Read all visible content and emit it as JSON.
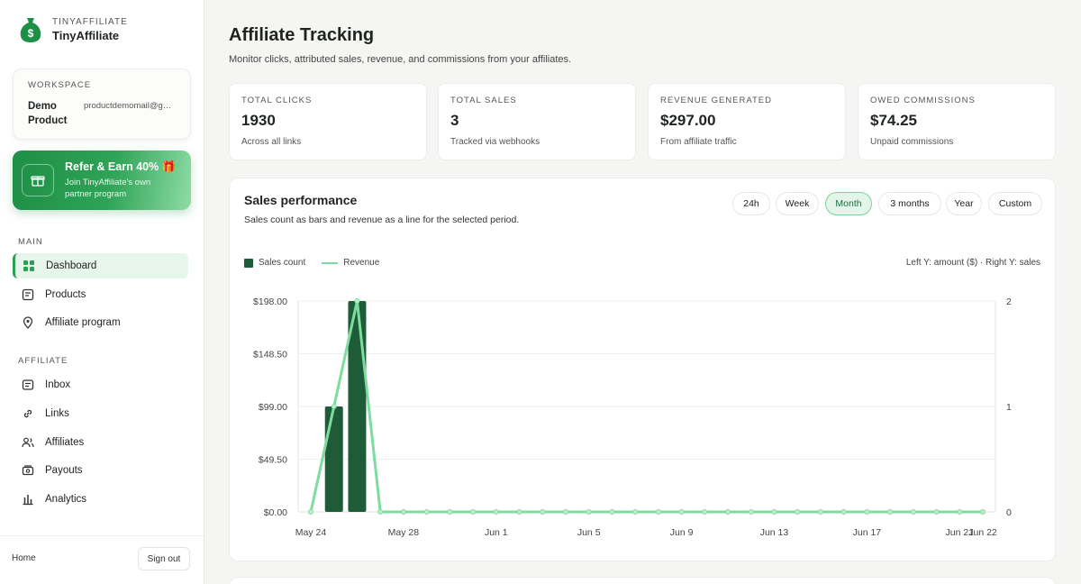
{
  "brand": {
    "small": "TINYAFFILIATE",
    "name": "TinyAffiliate"
  },
  "workspace": {
    "label": "WORKSPACE",
    "name": "Demo Product",
    "email": "productdemomail@gmail.com"
  },
  "refer": {
    "title": "Refer & Earn 40% 🎁",
    "description": "Join TinyAffiliate's own partner program"
  },
  "nav": {
    "main_label": "MAIN",
    "main_items": [
      {
        "label": "Dashboard",
        "icon": "grid-icon",
        "active": true
      },
      {
        "label": "Products",
        "icon": "document-icon"
      },
      {
        "label": "Affiliate program",
        "icon": "pin-icon"
      }
    ],
    "affiliate_label": "AFFILIATE",
    "affiliate_items": [
      {
        "label": "Inbox",
        "icon": "inbox-icon"
      },
      {
        "label": "Links",
        "icon": "link-icon"
      },
      {
        "label": "Affiliates",
        "icon": "users-icon"
      },
      {
        "label": "Payouts",
        "icon": "wallet-icon"
      },
      {
        "label": "Analytics",
        "icon": "bar-chart-icon"
      }
    ],
    "home_label": "Home",
    "sign_out_label": "Sign out"
  },
  "header": {
    "title": "Affiliate Tracking",
    "subtitle": "Monitor clicks, attributed sales, revenue, and commissions from your affiliates."
  },
  "stats": [
    {
      "label": "TOTAL CLICKS",
      "value": "1930",
      "sub": "Across all links"
    },
    {
      "label": "TOTAL SALES",
      "value": "3",
      "sub": "Tracked via webhooks"
    },
    {
      "label": "REVENUE GENERATED",
      "value": "$297.00",
      "sub": "From affiliate traffic"
    },
    {
      "label": "OWED COMMISSIONS",
      "value": "$74.25",
      "sub": "Unpaid commissions"
    }
  ],
  "panel": {
    "title": "Sales performance",
    "subtitle": "Sales count as bars and revenue as a line for the selected period.",
    "periods": [
      "24h",
      "Week",
      "Month",
      "3 months",
      "Year",
      "Custom"
    ],
    "active_period": "Month",
    "legend_bars": "Sales count",
    "legend_line": "Revenue",
    "axis_note": "Left Y: amount ($) · Right Y: sales"
  },
  "colors": {
    "accent": "#2e9e55",
    "bar": "#1e5c37",
    "line": "#7fdca0"
  },
  "chart_data": {
    "type": "bar",
    "x": [
      "May 24",
      "May 25",
      "May 26",
      "May 27",
      "May 28",
      "May 29",
      "May 30",
      "May 31",
      "Jun 1",
      "Jun 2",
      "Jun 3",
      "Jun 4",
      "Jun 5",
      "Jun 6",
      "Jun 7",
      "Jun 8",
      "Jun 9",
      "Jun 10",
      "Jun 11",
      "Jun 12",
      "Jun 13",
      "Jun 14",
      "Jun 15",
      "Jun 16",
      "Jun 17",
      "Jun 18",
      "Jun 19",
      "Jun 20",
      "Jun 21",
      "Jun 22"
    ],
    "x_tick_labels": [
      "May 24",
      "May 28",
      "Jun 1",
      "Jun 5",
      "Jun 9",
      "Jun 13",
      "Jun 17",
      "Jun 21",
      "Jun 22"
    ],
    "series": [
      {
        "name": "Sales count",
        "type": "bar",
        "axis": "right",
        "values": [
          0,
          1,
          2,
          0,
          0,
          0,
          0,
          0,
          0,
          0,
          0,
          0,
          0,
          0,
          0,
          0,
          0,
          0,
          0,
          0,
          0,
          0,
          0,
          0,
          0,
          0,
          0,
          0,
          0,
          0
        ]
      },
      {
        "name": "Revenue",
        "type": "line",
        "axis": "left",
        "values": [
          0,
          99,
          198,
          0,
          0,
          0,
          0,
          0,
          0,
          0,
          0,
          0,
          0,
          0,
          0,
          0,
          0,
          0,
          0,
          0,
          0,
          0,
          0,
          0,
          0,
          0,
          0,
          0,
          0,
          0
        ]
      }
    ],
    "left_axis": {
      "ylim": [
        0,
        198
      ],
      "ticks": [
        "$0.00",
        "$49.50",
        "$99.00",
        "$148.50",
        "$198.00"
      ]
    },
    "right_axis": {
      "ylim": [
        0,
        2
      ],
      "ticks": [
        "0",
        "1",
        "2"
      ]
    },
    "grid": true,
    "legend": "top-left"
  }
}
